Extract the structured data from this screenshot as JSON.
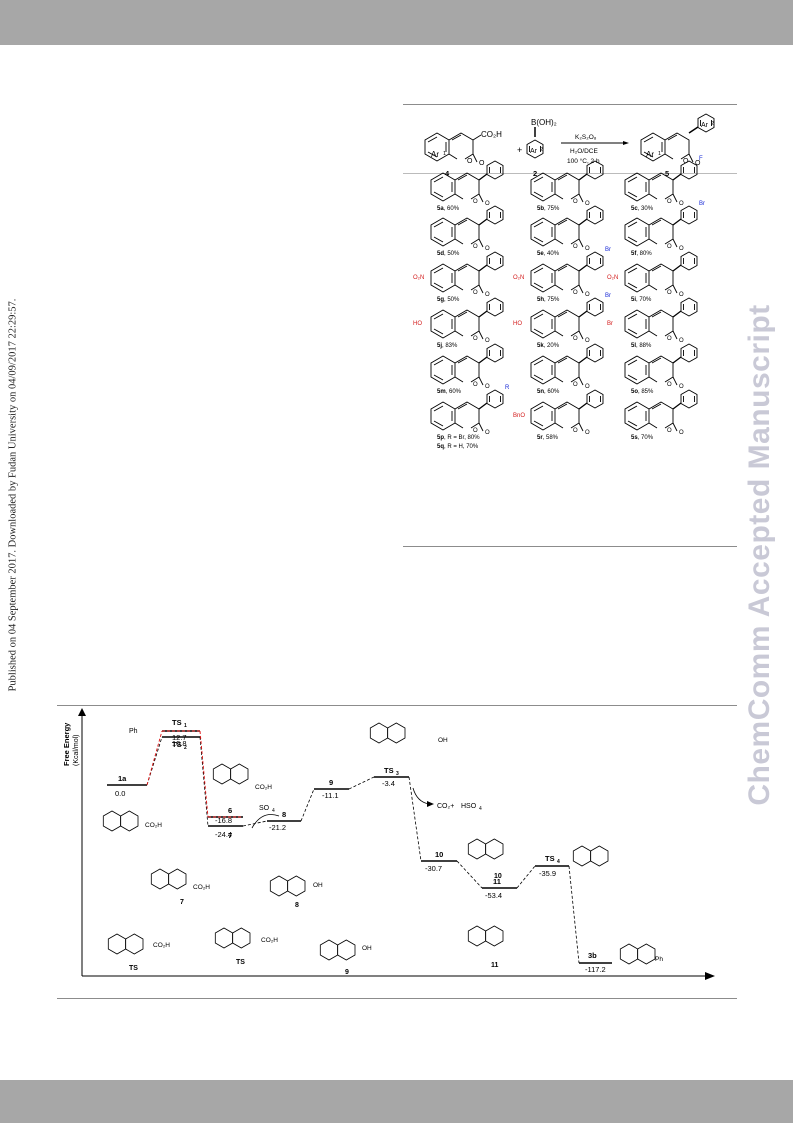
{
  "sidebar_note": "Published on 04 September 2017. Downloaded by Fudan University on 04/09/2017 22:29:57.",
  "watermark": "ChemComm Accepted Manuscript",
  "scheme": {
    "reactant_4": {
      "label": "4",
      "ar": "Ar",
      "ar_sup": "1",
      "group": "CO₂H"
    },
    "reactant_2": {
      "label": "2",
      "boronic": "B(OH)₂",
      "ar": "Ar",
      "ar_sup": "2"
    },
    "plus": "+",
    "conditions": {
      "reagent": "K₂S₂O₈",
      "solvent": "H₂O/DCE",
      "temp": "100 °C, 2 h"
    },
    "product_5": {
      "label": "5",
      "ar1": "Ar",
      "ar1_sup": "1",
      "ar2": "Ar",
      "ar2_sup": "2"
    },
    "oxygen": "O",
    "products": [
      {
        "id": "5a",
        "yield": ", 60%"
      },
      {
        "id": "5b",
        "yield": ", 75%"
      },
      {
        "id": "5c",
        "yield": ", 30%",
        "sub": "F"
      },
      {
        "id": "5d",
        "yield": ", 50%"
      },
      {
        "id": "5e",
        "yield": ", 40%"
      },
      {
        "id": "5f",
        "yield": ", 80%",
        "sub": "Br"
      },
      {
        "id": "5g",
        "yield": ", 50%",
        "left": "O₂N"
      },
      {
        "id": "5h",
        "yield": ", 75%",
        "left": "O₂N",
        "sub": "Br"
      },
      {
        "id": "5i",
        "yield": ", 70%",
        "left": "O₂N"
      },
      {
        "id": "5j",
        "yield": ", 83%",
        "left": "HO"
      },
      {
        "id": "5k",
        "yield": ", 20%",
        "left": "HO",
        "sub": "Br"
      },
      {
        "id": "5l",
        "yield": ", 88%",
        "left": "Br"
      },
      {
        "id": "5m",
        "yield": ", 60%"
      },
      {
        "id": "5n",
        "yield": ", 60%"
      },
      {
        "id": "5o",
        "yield": ", 85%"
      },
      {
        "id": "5p",
        "yield": ", R = Br, 80%",
        "sub": "R"
      },
      {
        "id": "5q",
        "yield": ", R = H, 70%"
      },
      {
        "id": "5r",
        "yield": ", 58%",
        "left": "BnO"
      },
      {
        "id": "5s",
        "yield": ", 70%"
      }
    ]
  },
  "energy_diagram": {
    "y_axis_label": "Free Energy",
    "y_axis_unit": "(Kcal/mol)",
    "species": {
      "1a": "1a",
      "ts1": "TS",
      "ts1_sub": "1",
      "ts2": "TS",
      "ts2_sub": "2",
      "ph": "Ph",
      "s6": "6",
      "so4": "SO",
      "so4_sub": "4",
      "s7": "7",
      "s8": "8",
      "s9": "9",
      "ts3": "TS",
      "ts3_sub": "3",
      "co2": "CO₂+",
      "hso4": "HSO",
      "hso4_sub": "4",
      "s10": "10",
      "s11": "11",
      "ts4": "TS",
      "ts4_sub": "4",
      "s3b": "3b",
      "co2h": "CO₂H",
      "h": "H",
      "o": "O",
      "oh": "OH"
    },
    "values": {
      "1a": "0.0",
      "ts1": "12.7",
      "ts2": "10.8",
      "s6": "-16.8",
      "s7": "-24.4",
      "s8": "-21.2",
      "s9": "-11.1",
      "ts3": "-3.4",
      "s10": "-30.7",
      "s11": "-53.4",
      "ts4": "-35.9",
      "s3b": "-117.2"
    }
  }
}
